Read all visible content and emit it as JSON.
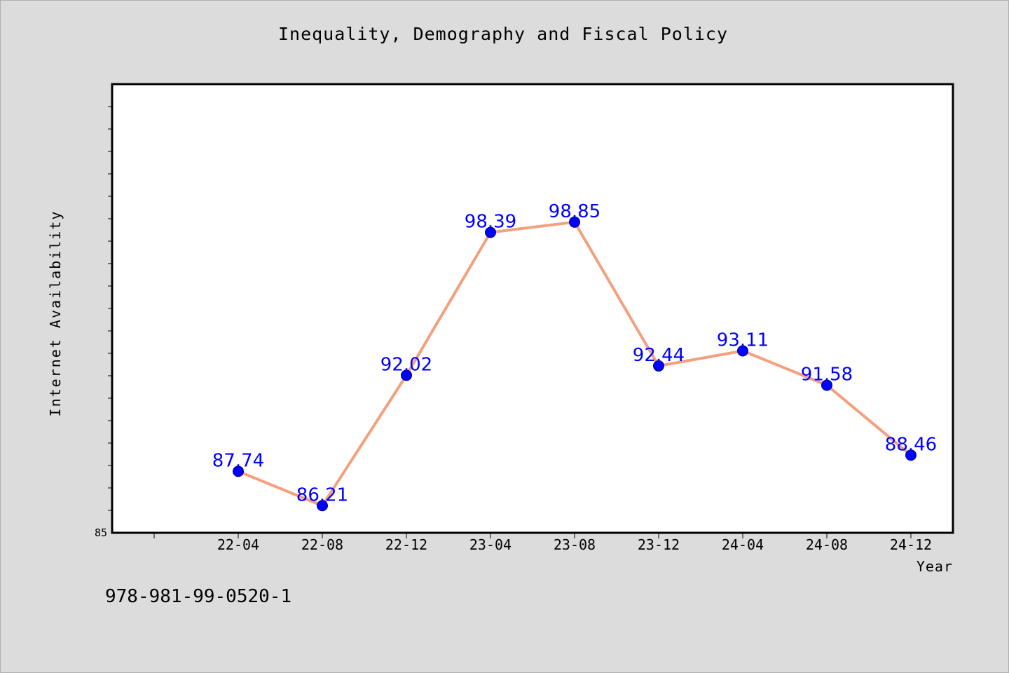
{
  "chart_data": {
    "type": "line",
    "title": "Inequality, Demography and Fiscal Policy",
    "xlabel": "Year",
    "ylabel": "Internet Availability",
    "categories": [
      "22-04",
      "22-08",
      "22-12",
      "23-04",
      "23-08",
      "23-12",
      "24-04",
      "24-08",
      "24-12"
    ],
    "series": [
      {
        "values": [
          87.74,
          86.21,
          92.02,
          98.39,
          98.85,
          92.44,
          93.11,
          91.58,
          88.46
        ]
      }
    ],
    "data_labels": [
      "87.74",
      "86.21",
      "92.02",
      "98.39",
      "98.85",
      "92.44",
      "93.11",
      "91.58",
      "88.46"
    ],
    "y_tick_labels": [
      "85"
    ],
    "ylim": [
      85,
      105
    ],
    "grid": false,
    "legend": "none",
    "colors": {
      "line": "#f4a07e",
      "marker": "#0000ff",
      "marker_edge": "#000080",
      "data_label": "#0000ff"
    }
  },
  "footer": {
    "isbn": "978-981-99-0520-1"
  }
}
